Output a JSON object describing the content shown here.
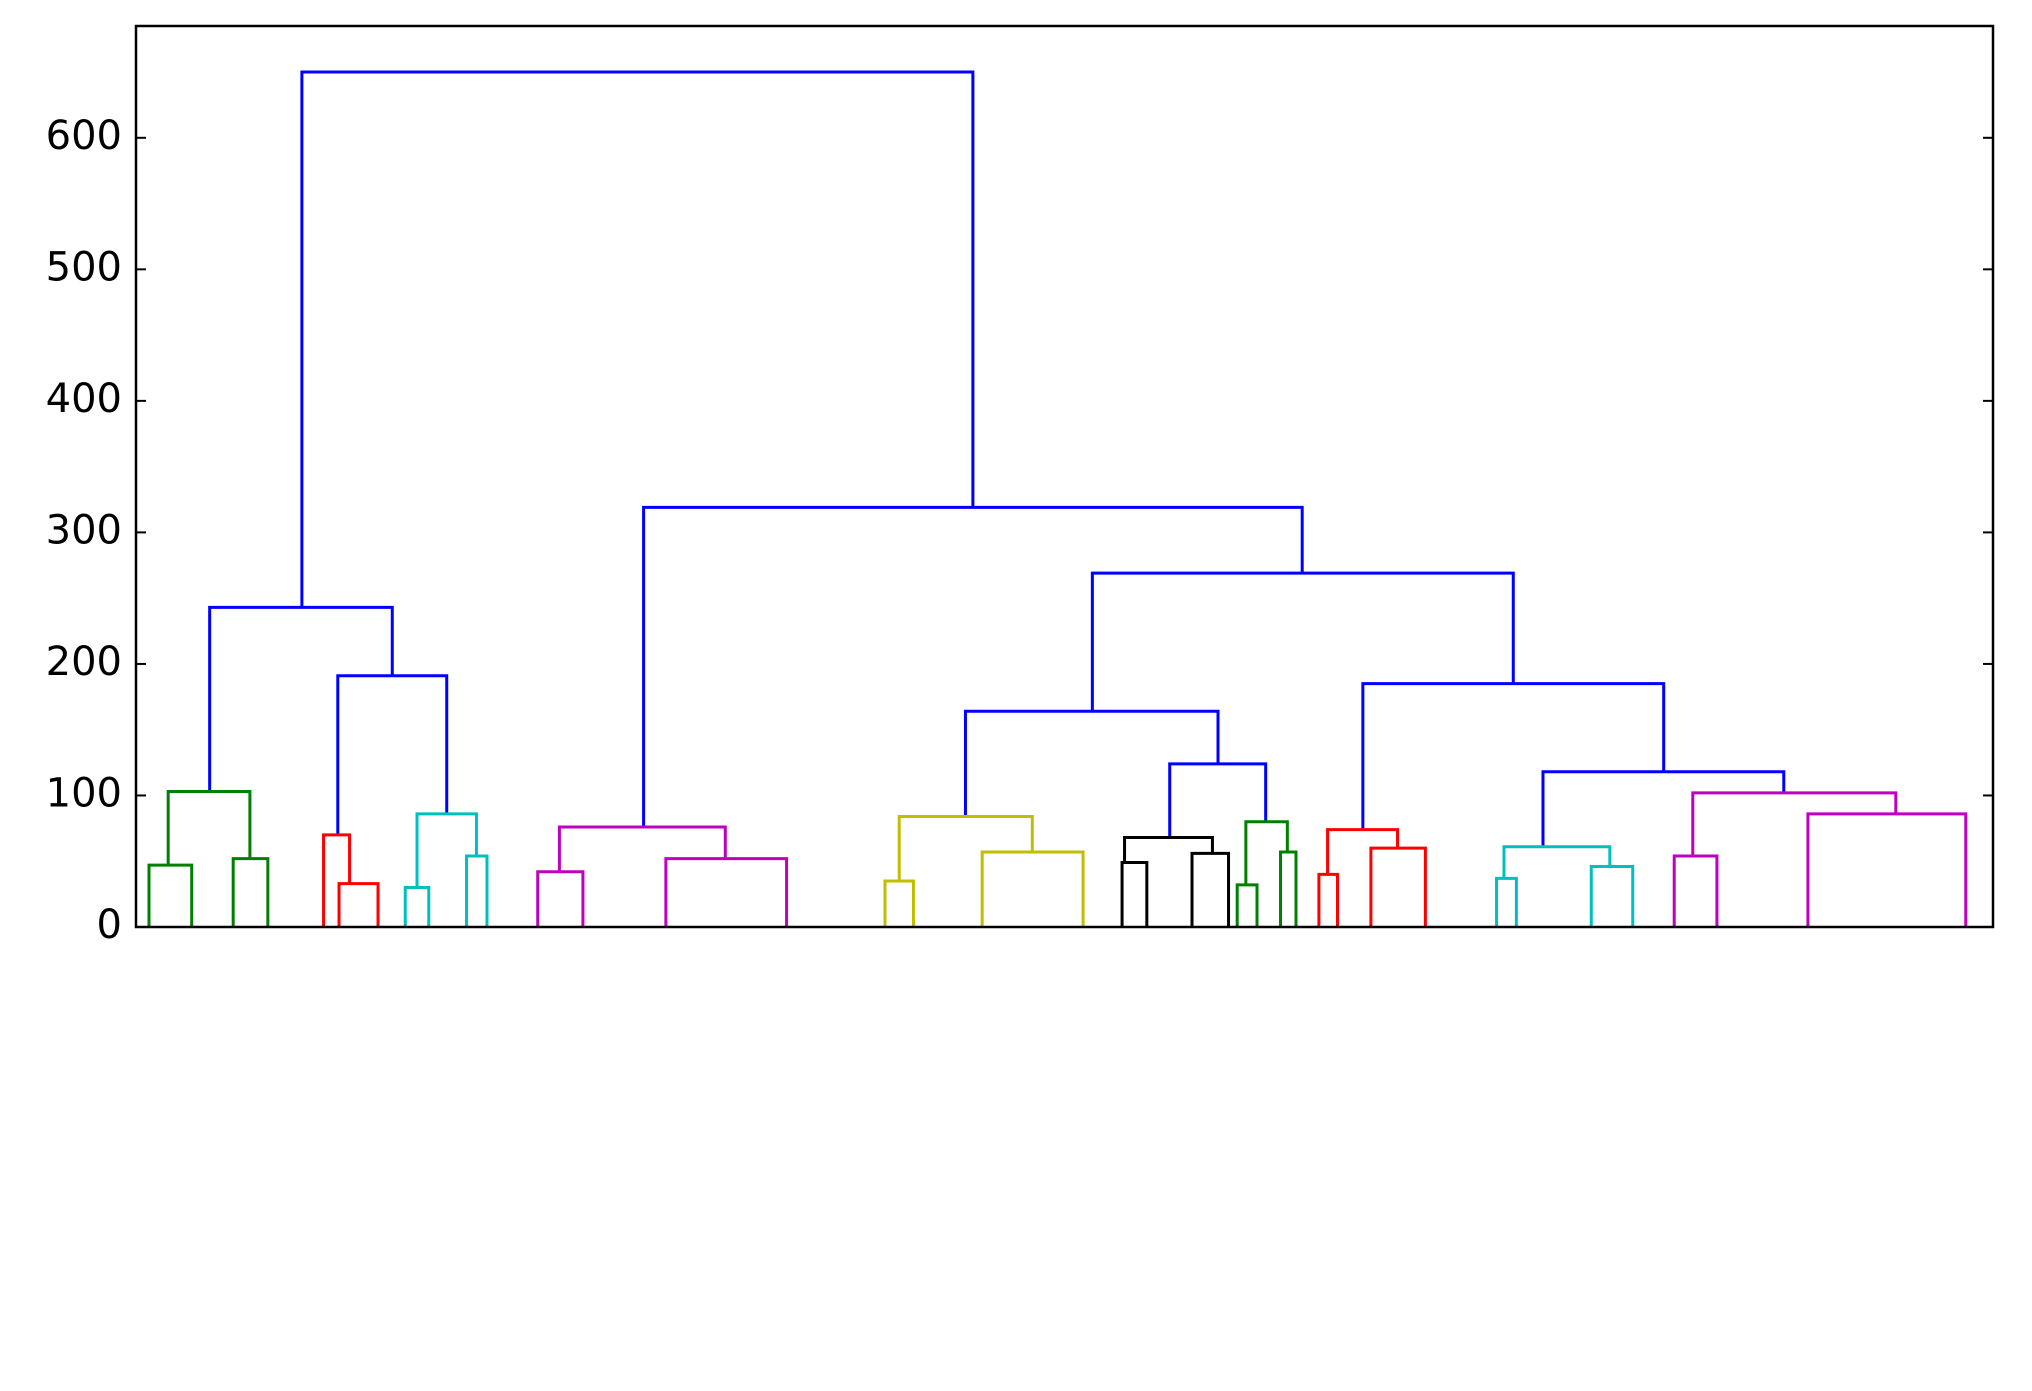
{
  "chart_data": {
    "type": "dendrogram",
    "xlim": [
      0,
      3000
    ],
    "ylim": [
      0,
      685
    ],
    "yticks": [
      0,
      100,
      200,
      300,
      400,
      500,
      600
    ],
    "links": [
      {
        "x": [
          268,
          1352
        ],
        "h": [
          243,
          650,
          319
        ],
        "color": "#0000ff"
      },
      {
        "x": [
          119,
          414
        ],
        "h": [
          103,
          243,
          191
        ],
        "color": "#0000ff"
      },
      {
        "x": [
          326,
          502
        ],
        "h": [
          70,
          191,
          86
        ],
        "color": "#0000ff"
      },
      {
        "x": [
          820,
          1884
        ],
        "h": [
          76,
          319,
          269
        ],
        "color": "#0000ff"
      },
      {
        "x": [
          1545,
          2225
        ],
        "h": [
          164,
          269,
          185
        ],
        "color": "#0000ff"
      },
      {
        "x": [
          1340,
          1748
        ],
        "h": [
          84,
          164,
          124
        ],
        "color": "#0000ff"
      },
      {
        "x": [
          1670,
          1825
        ],
        "h": [
          68,
          124,
          80
        ],
        "color": "#0000ff"
      },
      {
        "x": [
          1982,
          2468
        ],
        "h": [
          74,
          185,
          118
        ],
        "color": "#0000ff"
      },
      {
        "x": [
          2273,
          2662
        ],
        "h": [
          61,
          118,
          102
        ],
        "color": "#0000ff"
      },
      {
        "x": [
          52,
          184
        ],
        "h": [
          47,
          103,
          52
        ],
        "color": "#008000"
      },
      {
        "x": [
          21,
          90
        ],
        "h": [
          0,
          47,
          0
        ],
        "color": "#008000"
      },
      {
        "x": [
          157,
          213
        ],
        "h": [
          0,
          52,
          0
        ],
        "color": "#008000"
      },
      {
        "x": [
          303,
          345
        ],
        "h": [
          0,
          70,
          33
        ],
        "color": "#ff0000"
      },
      {
        "x": [
          328,
          391
        ],
        "h": [
          0,
          33,
          0
        ],
        "color": "#ff0000"
      },
      {
        "x": [
          454,
          550
        ],
        "h": [
          30,
          86,
          54
        ],
        "color": "#00bfbf"
      },
      {
        "x": [
          435,
          473
        ],
        "h": [
          0,
          30,
          0
        ],
        "color": "#00bfbf"
      },
      {
        "x": [
          534,
          567
        ],
        "h": [
          0,
          54,
          0
        ],
        "color": "#00bfbf"
      },
      {
        "x": [
          684,
          952
        ],
        "h": [
          42,
          76,
          52
        ],
        "color": "#bf00bf"
      },
      {
        "x": [
          649,
          722
        ],
        "h": [
          0,
          42,
          0
        ],
        "color": "#bf00bf"
      },
      {
        "x": [
          856,
          1051
        ],
        "h": [
          0,
          52,
          0
        ],
        "color": "#bf00bf"
      },
      {
        "x": [
          1233,
          1448
        ],
        "h": [
          35,
          84,
          57
        ],
        "color": "#bfbf00"
      },
      {
        "x": [
          1210,
          1256
        ],
        "h": [
          0,
          35,
          0
        ],
        "color": "#bfbf00"
      },
      {
        "x": [
          1367,
          1530
        ],
        "h": [
          0,
          57,
          0
        ],
        "color": "#bfbf00"
      },
      {
        "x": [
          1597,
          1739
        ],
        "h": [
          49,
          68,
          56
        ],
        "color": "#000000"
      },
      {
        "x": [
          1593,
          1633
        ],
        "h": [
          0,
          49,
          0
        ],
        "color": "#000000"
      },
      {
        "x": [
          1706,
          1765
        ],
        "h": [
          0,
          56,
          0
        ],
        "color": "#000000"
      },
      {
        "x": [
          1793,
          1860
        ],
        "h": [
          32,
          80,
          57
        ],
        "color": "#008000"
      },
      {
        "x": [
          1779,
          1811
        ],
        "h": [
          0,
          32,
          0
        ],
        "color": "#008000"
      },
      {
        "x": [
          1849,
          1874
        ],
        "h": [
          0,
          57,
          0
        ],
        "color": "#008000"
      },
      {
        "x": [
          1925,
          2038
        ],
        "h": [
          40,
          74,
          60
        ],
        "color": "#ff0000"
      },
      {
        "x": [
          1911,
          1941
        ],
        "h": [
          0,
          40,
          0
        ],
        "color": "#ff0000"
      },
      {
        "x": [
          1995,
          2083
        ],
        "h": [
          0,
          60,
          0
        ],
        "color": "#ff0000"
      },
      {
        "x": [
          2210,
          2381
        ],
        "h": [
          37,
          61,
          46
        ],
        "color": "#00bfbf"
      },
      {
        "x": [
          2198,
          2230
        ],
        "h": [
          0,
          37,
          0
        ],
        "color": "#00bfbf"
      },
      {
        "x": [
          2351,
          2418
        ],
        "h": [
          0,
          46,
          0
        ],
        "color": "#00bfbf"
      },
      {
        "x": [
          2515,
          2843
        ],
        "h": [
          54,
          102,
          86
        ],
        "color": "#bf00bf"
      },
      {
        "x": [
          2485,
          2554
        ],
        "h": [
          0,
          54,
          0
        ],
        "color": "#bf00bf"
      },
      {
        "x": [
          2701,
          2956
        ],
        "h": [
          0,
          86,
          0
        ],
        "color": "#bf00bf"
      }
    ]
  }
}
